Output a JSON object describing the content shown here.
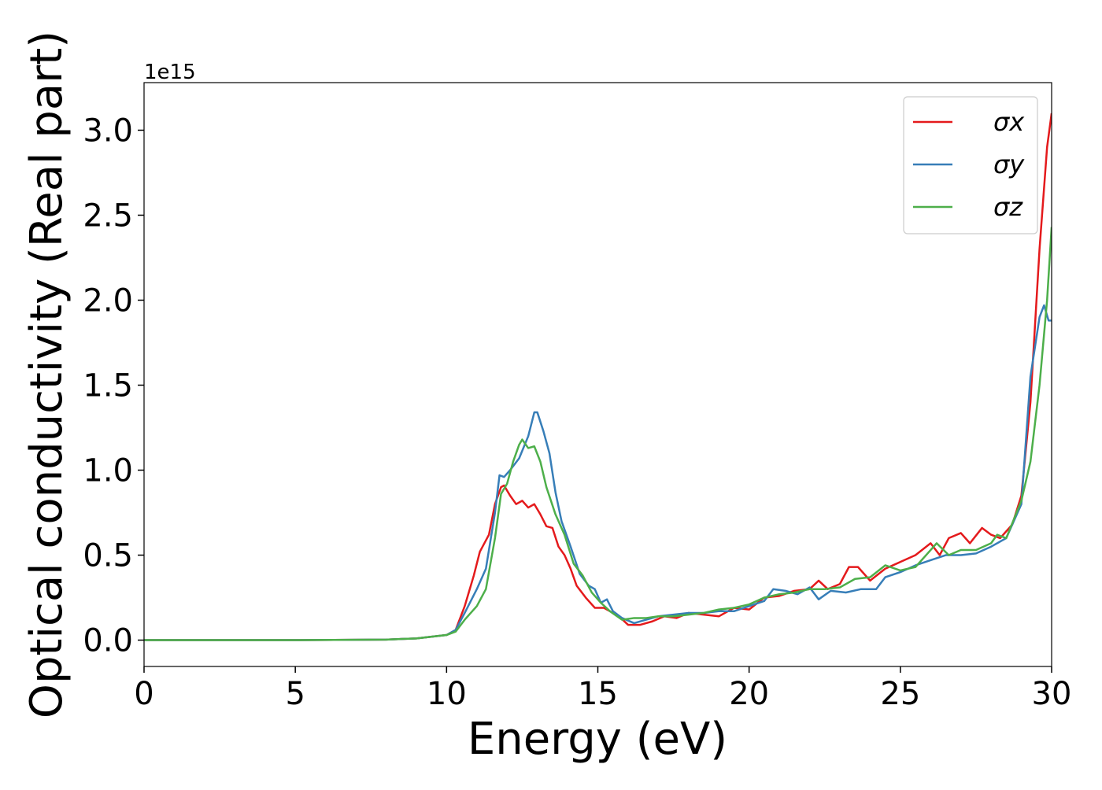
{
  "chart_data": {
    "type": "line",
    "xlabel": "Energy (eV)",
    "ylabel": "Optical conductivity (Real part)",
    "y_offset_label": "1e15",
    "xlim": [
      0,
      30
    ],
    "xticks": [
      0,
      5,
      10,
      15,
      20,
      25,
      30
    ],
    "ylim": [
      -0.155,
      3.28
    ],
    "yticks": [
      {
        "value": 0,
        "label": "0.0"
      },
      {
        "value": 0.5,
        "label": "0.5"
      },
      {
        "value": 1,
        "label": "1.0"
      },
      {
        "value": 1.5,
        "label": "1.5"
      },
      {
        "value": 2,
        "label": "2.0"
      },
      {
        "value": 2.5,
        "label": "2.5"
      },
      {
        "value": 3,
        "label": "3.0"
      }
    ],
    "legend": "upper right",
    "grid": false,
    "series": [
      {
        "name": "σx",
        "color": "#e41a1c",
        "x": [
          0,
          5,
          8,
          9,
          10,
          10.3,
          10.6,
          10.9,
          11.1,
          11.4,
          11.6,
          11.8,
          11.9,
          12.1,
          12.3,
          12.5,
          12.7,
          12.9,
          13.1,
          13.3,
          13.5,
          13.7,
          13.9,
          14.1,
          14.3,
          14.6,
          14.9,
          15.2,
          15.4,
          15.7,
          16,
          16.4,
          16.8,
          17.2,
          17.6,
          18,
          18.5,
          19,
          19.5,
          20,
          20.5,
          21,
          21.5,
          22,
          22.3,
          22.6,
          23,
          23.3,
          23.6,
          24,
          24.5,
          25,
          25.5,
          26,
          26.3,
          26.6,
          27,
          27.3,
          27.7,
          28,
          28.3,
          28.7,
          29,
          29.3,
          29.6,
          29.85,
          30
        ],
        "values": [
          0,
          0,
          0.003,
          0.01,
          0.03,
          0.06,
          0.2,
          0.38,
          0.52,
          0.62,
          0.8,
          0.9,
          0.91,
          0.85,
          0.8,
          0.82,
          0.78,
          0.8,
          0.74,
          0.67,
          0.66,
          0.55,
          0.5,
          0.42,
          0.32,
          0.25,
          0.19,
          0.19,
          0.17,
          0.14,
          0.09,
          0.09,
          0.11,
          0.14,
          0.13,
          0.16,
          0.15,
          0.14,
          0.19,
          0.18,
          0.25,
          0.26,
          0.29,
          0.3,
          0.35,
          0.3,
          0.33,
          0.43,
          0.43,
          0.35,
          0.42,
          0.46,
          0.5,
          0.57,
          0.5,
          0.6,
          0.63,
          0.57,
          0.66,
          0.62,
          0.6,
          0.68,
          0.85,
          1.4,
          2.3,
          2.9,
          3.1
        ]
      },
      {
        "name": "σy",
        "color": "#377eb8",
        "x": [
          0,
          5,
          8,
          9,
          10,
          10.3,
          10.6,
          11,
          11.3,
          11.6,
          11.75,
          11.9,
          12.1,
          12.4,
          12.7,
          12.9,
          13.0,
          13.2,
          13.4,
          13.6,
          13.8,
          14.1,
          14.4,
          14.7,
          14.9,
          15.1,
          15.3,
          15.5,
          15.8,
          16.2,
          16.6,
          17,
          17.5,
          18,
          18.5,
          19,
          19.5,
          20,
          20.5,
          20.8,
          21.2,
          21.6,
          22,
          22.3,
          22.7,
          23.2,
          23.7,
          24.2,
          24.5,
          25,
          25.5,
          26,
          26.5,
          27,
          27.5,
          28,
          28.5,
          29,
          29.3,
          29.6,
          29.75,
          29.9,
          30
        ],
        "values": [
          0,
          0,
          0.003,
          0.01,
          0.03,
          0.06,
          0.16,
          0.3,
          0.42,
          0.75,
          0.97,
          0.96,
          1.0,
          1.07,
          1.2,
          1.34,
          1.34,
          1.23,
          1.1,
          0.87,
          0.7,
          0.55,
          0.39,
          0.32,
          0.3,
          0.22,
          0.24,
          0.17,
          0.13,
          0.1,
          0.12,
          0.14,
          0.15,
          0.16,
          0.16,
          0.17,
          0.17,
          0.2,
          0.23,
          0.3,
          0.29,
          0.27,
          0.31,
          0.24,
          0.29,
          0.28,
          0.3,
          0.3,
          0.37,
          0.4,
          0.44,
          0.47,
          0.5,
          0.5,
          0.51,
          0.55,
          0.6,
          0.8,
          1.55,
          1.9,
          1.97,
          1.88,
          1.88
        ]
      },
      {
        "name": "σz",
        "color": "#4daf4a",
        "x": [
          0,
          5,
          8,
          9,
          10,
          10.3,
          10.6,
          11,
          11.3,
          11.6,
          11.8,
          12,
          12.2,
          12.4,
          12.5,
          12.7,
          12.9,
          13.1,
          13.3,
          13.6,
          13.9,
          14.2,
          14.5,
          14.8,
          15.1,
          15.4,
          15.8,
          16.2,
          16.6,
          17,
          17.5,
          18,
          18.5,
          19,
          19.5,
          20,
          20.5,
          21,
          21.5,
          22,
          22.5,
          23,
          23.5,
          24,
          24.5,
          25,
          25.5,
          26,
          26.2,
          26.6,
          27,
          27.5,
          28,
          28.2,
          28.5,
          29,
          29.3,
          29.6,
          29.85,
          30
        ],
        "values": [
          0,
          0,
          0.003,
          0.01,
          0.03,
          0.05,
          0.12,
          0.2,
          0.3,
          0.6,
          0.86,
          0.92,
          1.05,
          1.15,
          1.18,
          1.13,
          1.14,
          1.05,
          0.9,
          0.74,
          0.62,
          0.45,
          0.38,
          0.28,
          0.22,
          0.17,
          0.12,
          0.13,
          0.13,
          0.14,
          0.14,
          0.15,
          0.16,
          0.18,
          0.19,
          0.21,
          0.25,
          0.27,
          0.28,
          0.3,
          0.3,
          0.31,
          0.36,
          0.37,
          0.44,
          0.41,
          0.43,
          0.53,
          0.57,
          0.5,
          0.53,
          0.53,
          0.57,
          0.62,
          0.6,
          0.82,
          1.05,
          1.5,
          2.0,
          2.43
        ]
      }
    ]
  }
}
